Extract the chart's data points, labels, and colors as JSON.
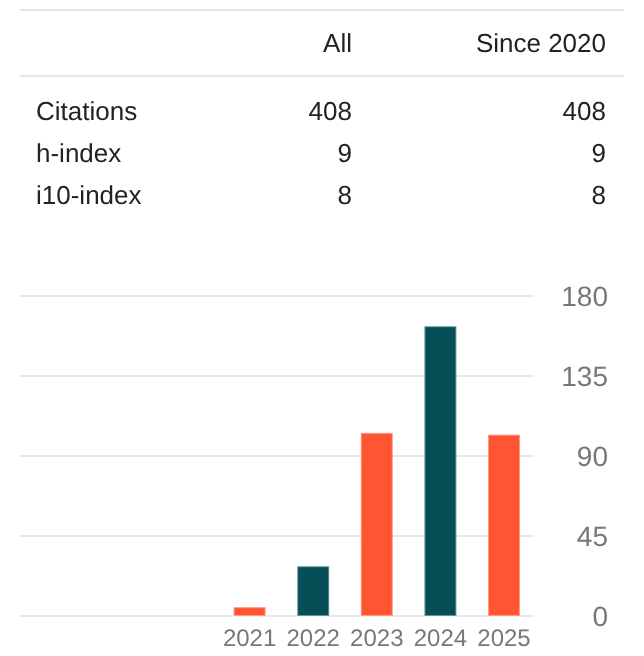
{
  "chart_data": [
    {
      "type": "other",
      "categories": [
        "All",
        "Since 2020"
      ],
      "y_categories": [
        "Citations",
        "h-index",
        "i10-index"
      ],
      "cell_labels": [
        [
          "408",
          "408"
        ],
        [
          "9",
          "9"
        ],
        [
          "8",
          "8"
        ]
      ]
    },
    {
      "type": "bar",
      "categories": [
        "2021",
        "2022",
        "2023",
        "2024",
        "2025"
      ],
      "values": [
        5,
        28,
        103,
        163,
        102
      ],
      "colors": [
        "#ff5533",
        "#044f56",
        "#ff5533",
        "#044f56",
        "#ff5533"
      ],
      "ylim": [
        0,
        180
      ],
      "yticks": [
        0,
        45,
        90,
        135,
        180
      ],
      "grid": "y"
    }
  ]
}
